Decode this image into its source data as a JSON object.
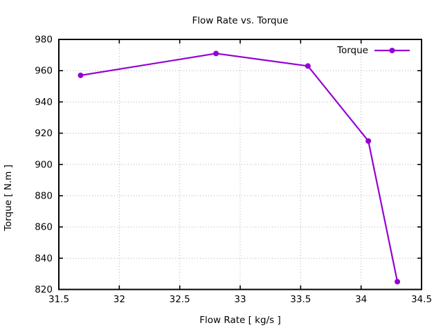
{
  "chart_data": {
    "type": "line",
    "title": "Flow Rate vs. Torque",
    "xlabel": "Flow Rate [ kg/s ]",
    "ylabel": "Torque [ N.m ]",
    "xlim": [
      31.5,
      34.5
    ],
    "ylim": [
      820,
      980
    ],
    "x_ticks": [
      31.5,
      32,
      32.5,
      33,
      33.5,
      34,
      34.5
    ],
    "x_tick_labels": [
      "31.5",
      "32",
      "32.5",
      "33",
      "33.5",
      "34",
      "34.5"
    ],
    "y_ticks": [
      820,
      840,
      860,
      880,
      900,
      920,
      940,
      960,
      980
    ],
    "y_tick_labels": [
      "820",
      "840",
      "860",
      "880",
      "900",
      "920",
      "940",
      "960",
      "980"
    ],
    "grid": true,
    "grid_style": "dotted",
    "legend_position": "upper right",
    "series": [
      {
        "name": "Torque",
        "color": "#9400d3",
        "marker": "circle",
        "x": [
          31.68,
          32.8,
          33.56,
          34.06,
          34.3
        ],
        "y": [
          957,
          971,
          963,
          915,
          825
        ]
      }
    ]
  },
  "legend": {
    "label": "Torque"
  },
  "colors": {
    "background": "#ffffff",
    "text": "#000000",
    "axis": "#000000",
    "grid": "#b0b0b0",
    "series": "#9400d3"
  }
}
